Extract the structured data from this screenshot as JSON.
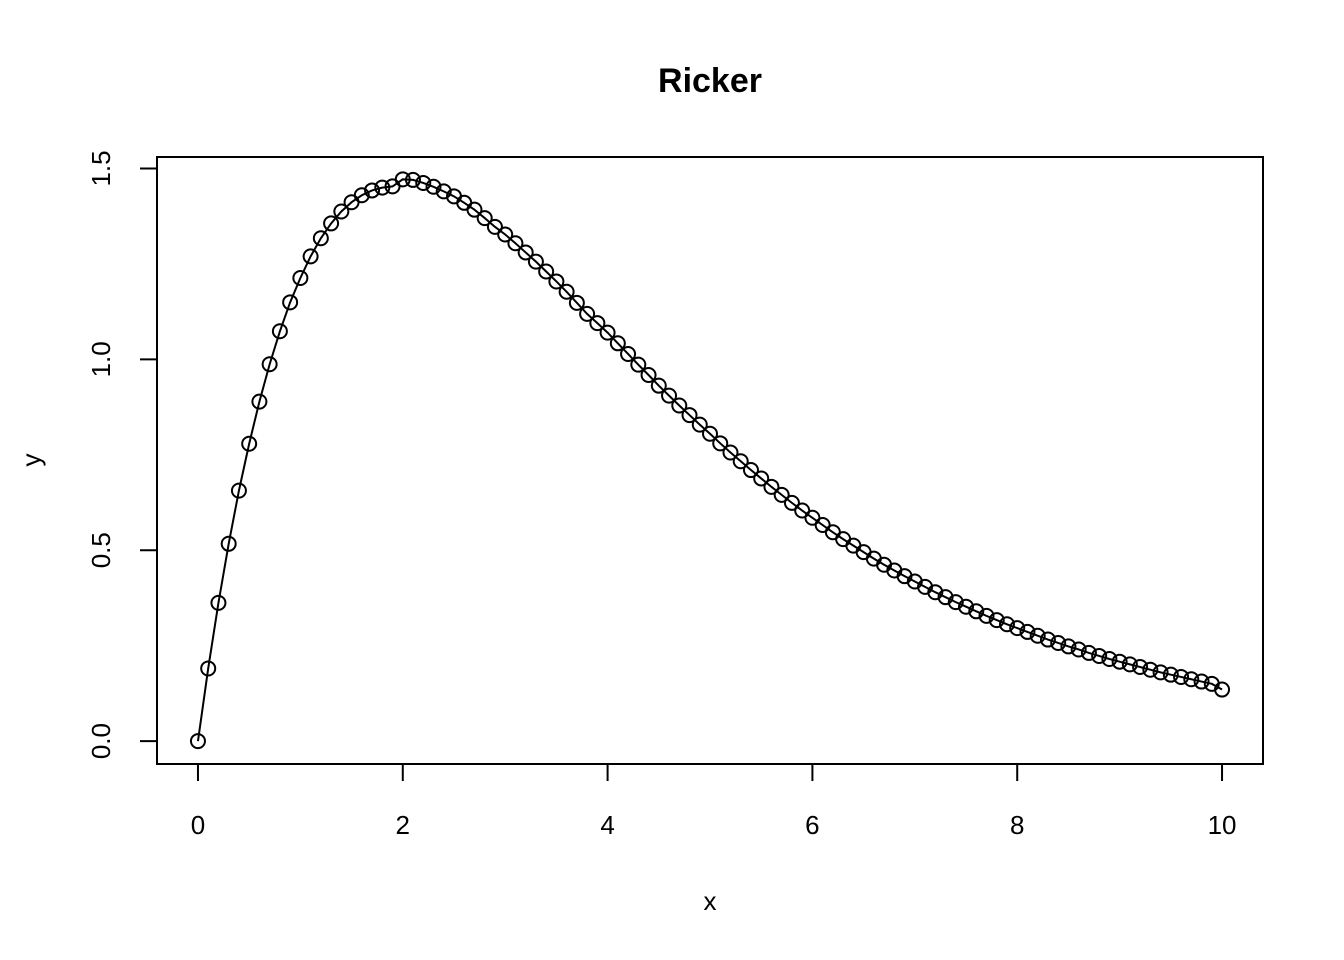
{
  "chart_data": {
    "type": "line",
    "markers": "open-circle",
    "title": "Ricker",
    "xlabel": "x",
    "ylabel": "y",
    "xlim": [
      -0.4,
      10.4
    ],
    "ylim": [
      -0.06,
      1.53
    ],
    "xticks": [
      0,
      2,
      4,
      6,
      8,
      10
    ],
    "xtick_labels": [
      "0",
      "2",
      "4",
      "6",
      "8",
      "10"
    ],
    "yticks": [
      0.0,
      0.5,
      1.0,
      1.5
    ],
    "ytick_labels": [
      "0.0",
      "0.5",
      "1.0",
      "1.5"
    ],
    "grid": false,
    "legend": "none",
    "colors": {
      "line": "#000000",
      "marker": "#000000",
      "background": "#ffffff"
    },
    "series": [
      {
        "x": [
          0.0,
          0.1,
          0.2,
          0.3,
          0.4,
          0.5,
          0.6,
          0.7,
          0.8,
          0.9,
          1.0,
          1.1,
          1.2,
          1.3,
          1.4,
          1.5,
          1.6,
          1.7,
          1.8,
          1.9,
          2.0,
          2.1,
          2.2,
          2.3,
          2.4,
          2.5,
          2.6,
          2.7,
          2.8,
          2.9,
          3.0,
          3.1,
          3.2,
          3.3,
          3.4,
          3.5,
          3.6,
          3.7,
          3.8,
          3.9,
          4.0,
          4.1,
          4.2,
          4.3,
          4.4,
          4.5,
          4.6,
          4.7,
          4.8,
          4.9,
          5.0,
          5.1,
          5.2,
          5.3,
          5.4,
          5.5,
          5.6,
          5.7,
          5.8,
          5.9,
          6.0,
          6.1,
          6.2,
          6.3,
          6.4,
          6.5,
          6.6,
          6.7,
          6.8,
          6.9,
          7.0,
          7.1,
          7.2,
          7.3,
          7.4,
          7.5,
          7.6,
          7.7,
          7.8,
          7.9,
          8.0,
          8.1,
          8.2,
          8.3,
          8.4,
          8.5,
          8.6,
          8.7,
          8.8,
          8.9,
          9.0,
          9.1,
          9.2,
          9.3,
          9.4,
          9.5,
          9.6,
          9.7,
          9.8,
          9.9,
          10.0
        ],
        "y": [
          0.0,
          0.1903,
          0.3621,
          0.5168,
          0.6561,
          0.7788,
          0.8892,
          0.9872,
          1.0735,
          1.1493,
          1.2131,
          1.2697,
          1.3171,
          1.356,
          1.3873,
          1.4116,
          1.4298,
          1.4424,
          1.4499,
          1.453,
          1.4715,
          1.47,
          1.462,
          1.452,
          1.44,
          1.427,
          1.41,
          1.392,
          1.37,
          1.347,
          1.327,
          1.304,
          1.28,
          1.256,
          1.23,
          1.204,
          1.177,
          1.148,
          1.119,
          1.095,
          1.07,
          1.042,
          1.014,
          0.986,
          0.959,
          0.931,
          0.905,
          0.879,
          0.854,
          0.829,
          0.805,
          0.78,
          0.756,
          0.733,
          0.71,
          0.688,
          0.666,
          0.645,
          0.624,
          0.604,
          0.585,
          0.566,
          0.547,
          0.529,
          0.512,
          0.495,
          0.478,
          0.462,
          0.447,
          0.432,
          0.418,
          0.404,
          0.39,
          0.377,
          0.364,
          0.352,
          0.34,
          0.328,
          0.317,
          0.306,
          0.296,
          0.286,
          0.276,
          0.266,
          0.257,
          0.248,
          0.24,
          0.231,
          0.223,
          0.215,
          0.208,
          0.201,
          0.194,
          0.187,
          0.18,
          0.174,
          0.168,
          0.162,
          0.156,
          0.15,
          0.135
        ]
      }
    ]
  }
}
